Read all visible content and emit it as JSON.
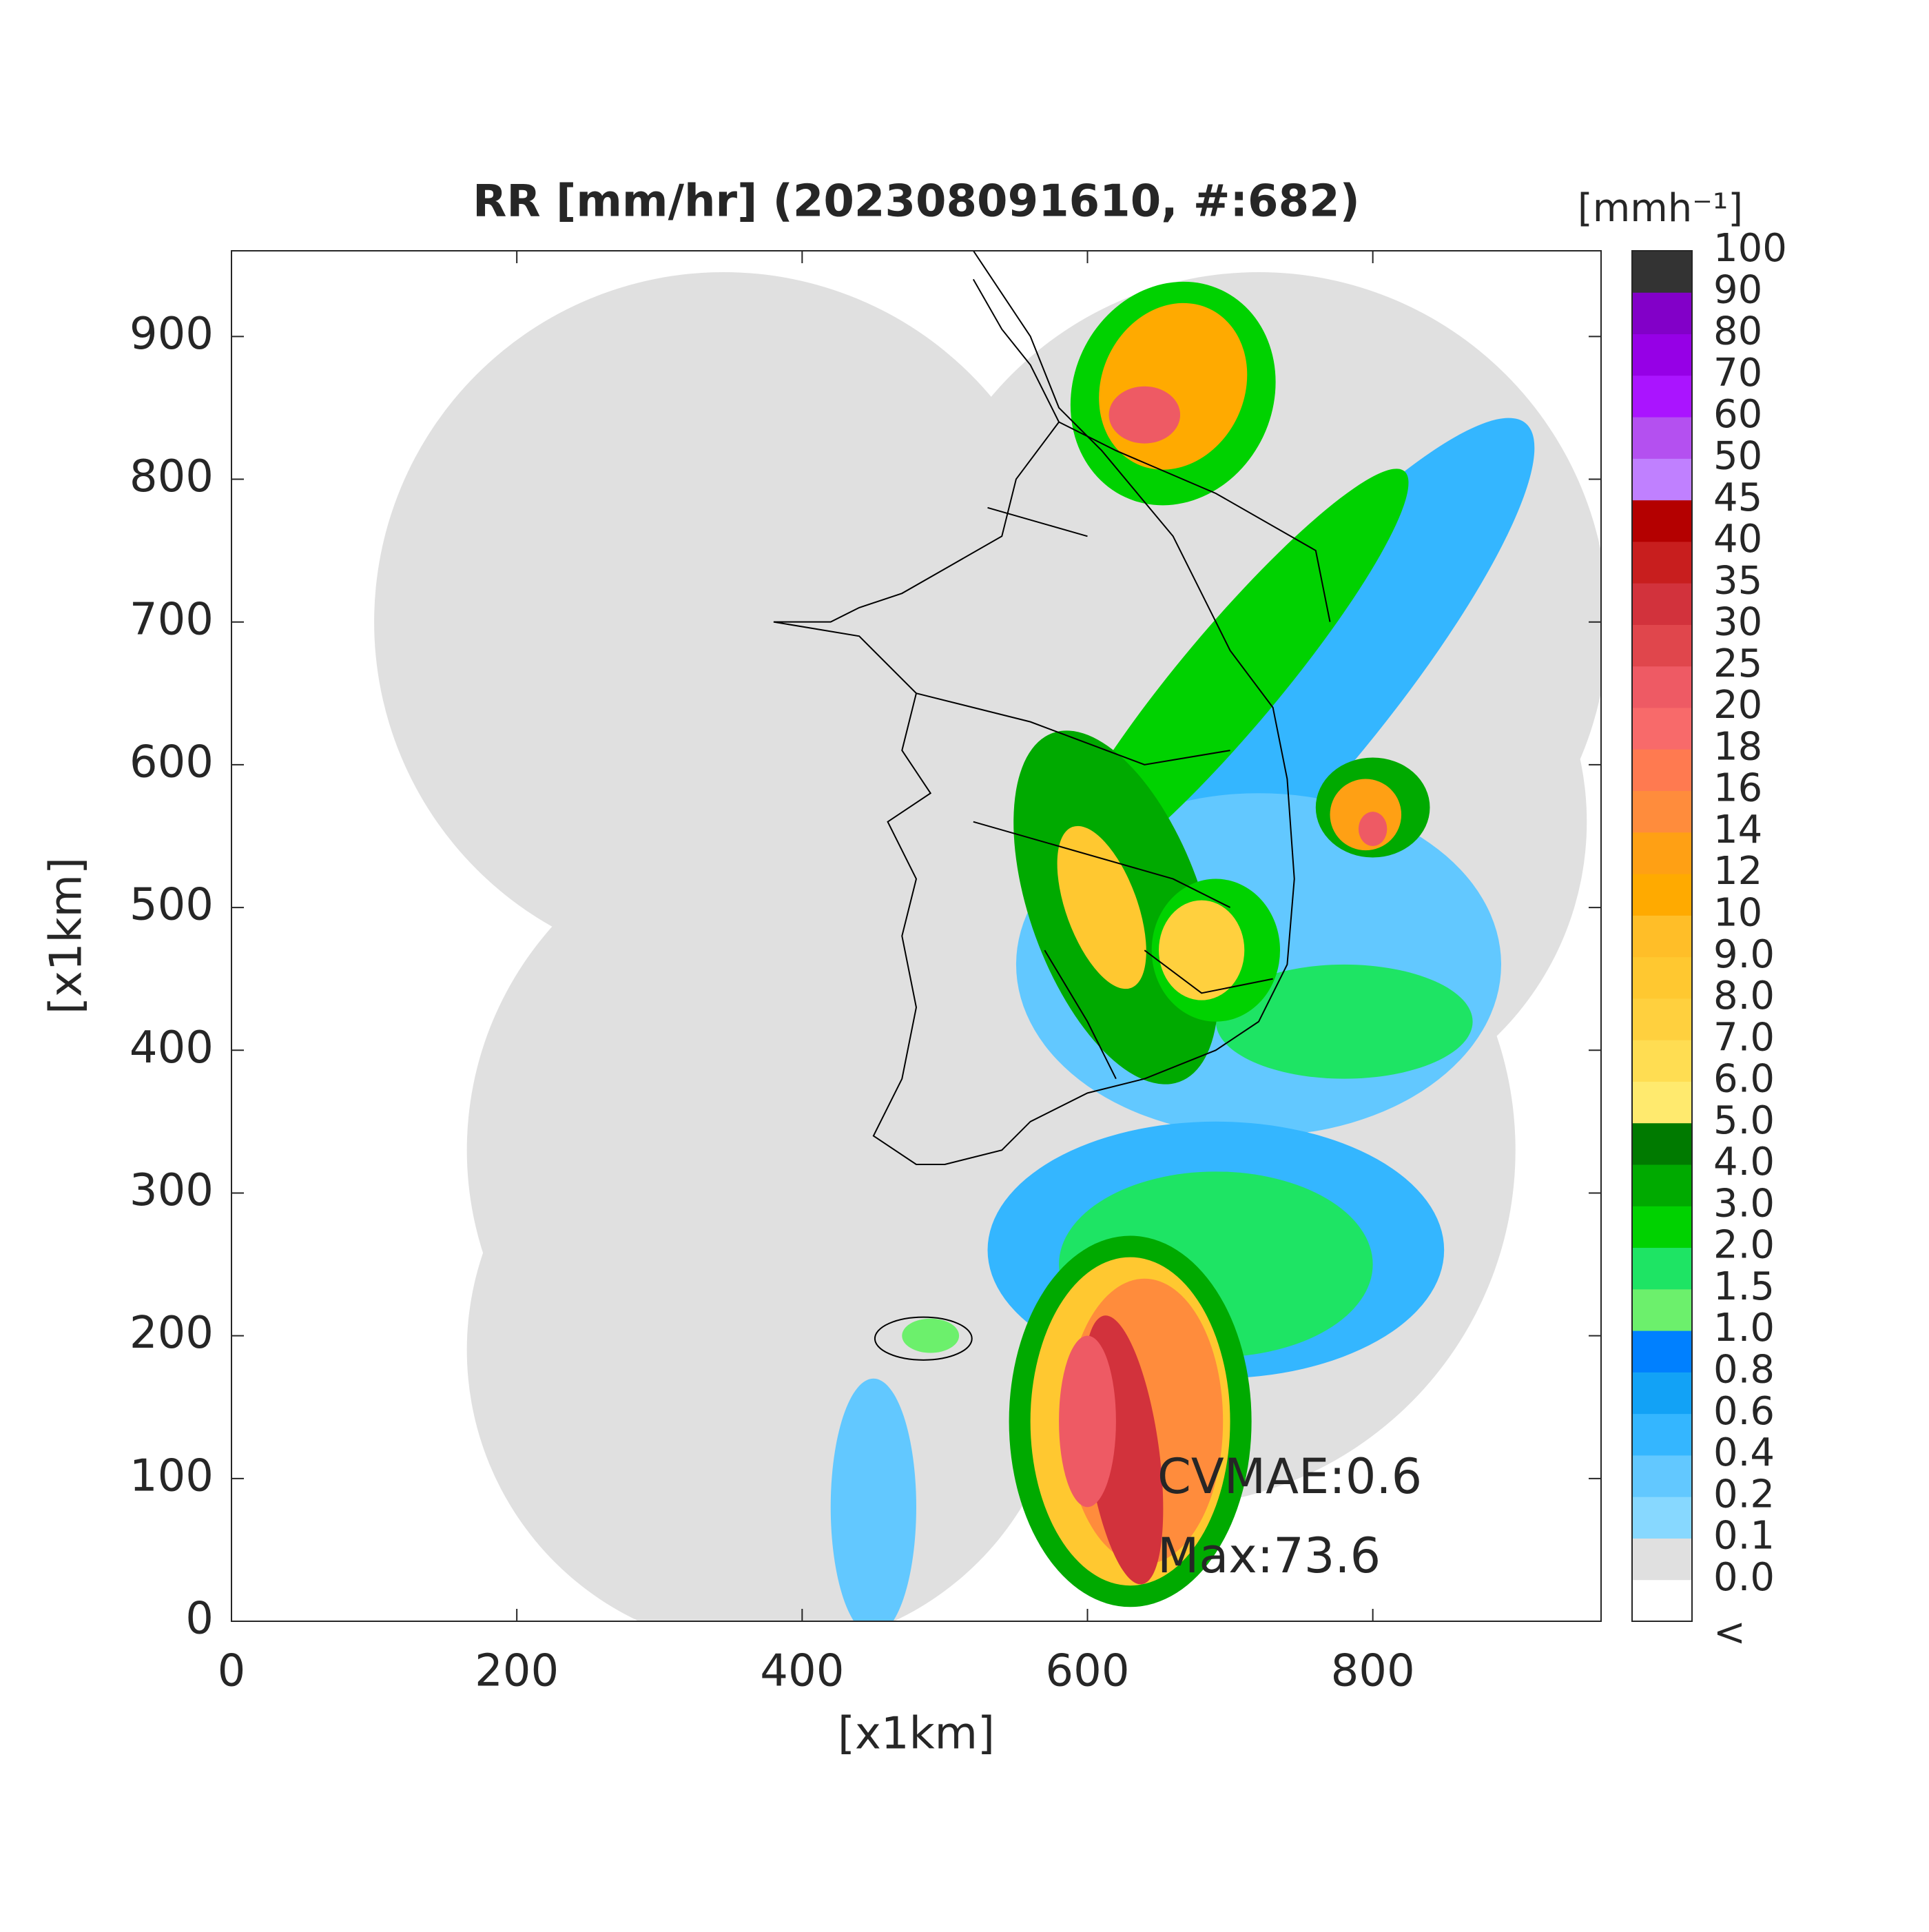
{
  "chart_data": {
    "type": "map",
    "title": "RR [mm/hr] (202308091610, #:682)",
    "x_label": "[x1km]",
    "y_label": "[x1km]",
    "xlim": [
      0,
      960
    ],
    "ylim": [
      0,
      960
    ],
    "xticks": [
      0,
      200,
      400,
      600,
      800
    ],
    "yticks": [
      0,
      100,
      200,
      300,
      400,
      500,
      600,
      700,
      800,
      900
    ],
    "annotations": [
      "CVMAE:0.6",
      "Max:73.6"
    ],
    "colorbar": {
      "title": "[mmh⁻¹]",
      "labels": [
        "<",
        "0.0",
        "0.1",
        "0.2",
        "0.4",
        "0.6",
        "0.8",
        "1.0",
        "1.5",
        "2.0",
        "3.0",
        "4.0",
        "5.0",
        "6.0",
        "7.0",
        "8.0",
        "9.0",
        "10",
        "12",
        "14",
        "16",
        "18",
        "20",
        "25",
        "30",
        "35",
        "40",
        "45",
        "50",
        "60",
        "70",
        "80",
        "90",
        "100"
      ],
      "colors": [
        "#ffffff",
        "#e0e0e0",
        "#87d8ff",
        "#62c8ff",
        "#34b6ff",
        "#12a2f6",
        "#0080ff",
        "#6cf06c",
        "#1ee464",
        "#00d200",
        "#00aa00",
        "#007a00",
        "#ffea6e",
        "#ffdd52",
        "#ffd03e",
        "#ffc830",
        "#ffbe28",
        "#ffaa00",
        "#ffa014",
        "#ff8c3c",
        "#ff7a50",
        "#f86a6a",
        "#ee5a64",
        "#e0464c",
        "#d2323c",
        "#c81e1e",
        "#b40000",
        "#c080ff",
        "#b450f0",
        "#aa14ff",
        "#9600e6",
        "#8200c8",
        "#333333"
      ]
    }
  }
}
